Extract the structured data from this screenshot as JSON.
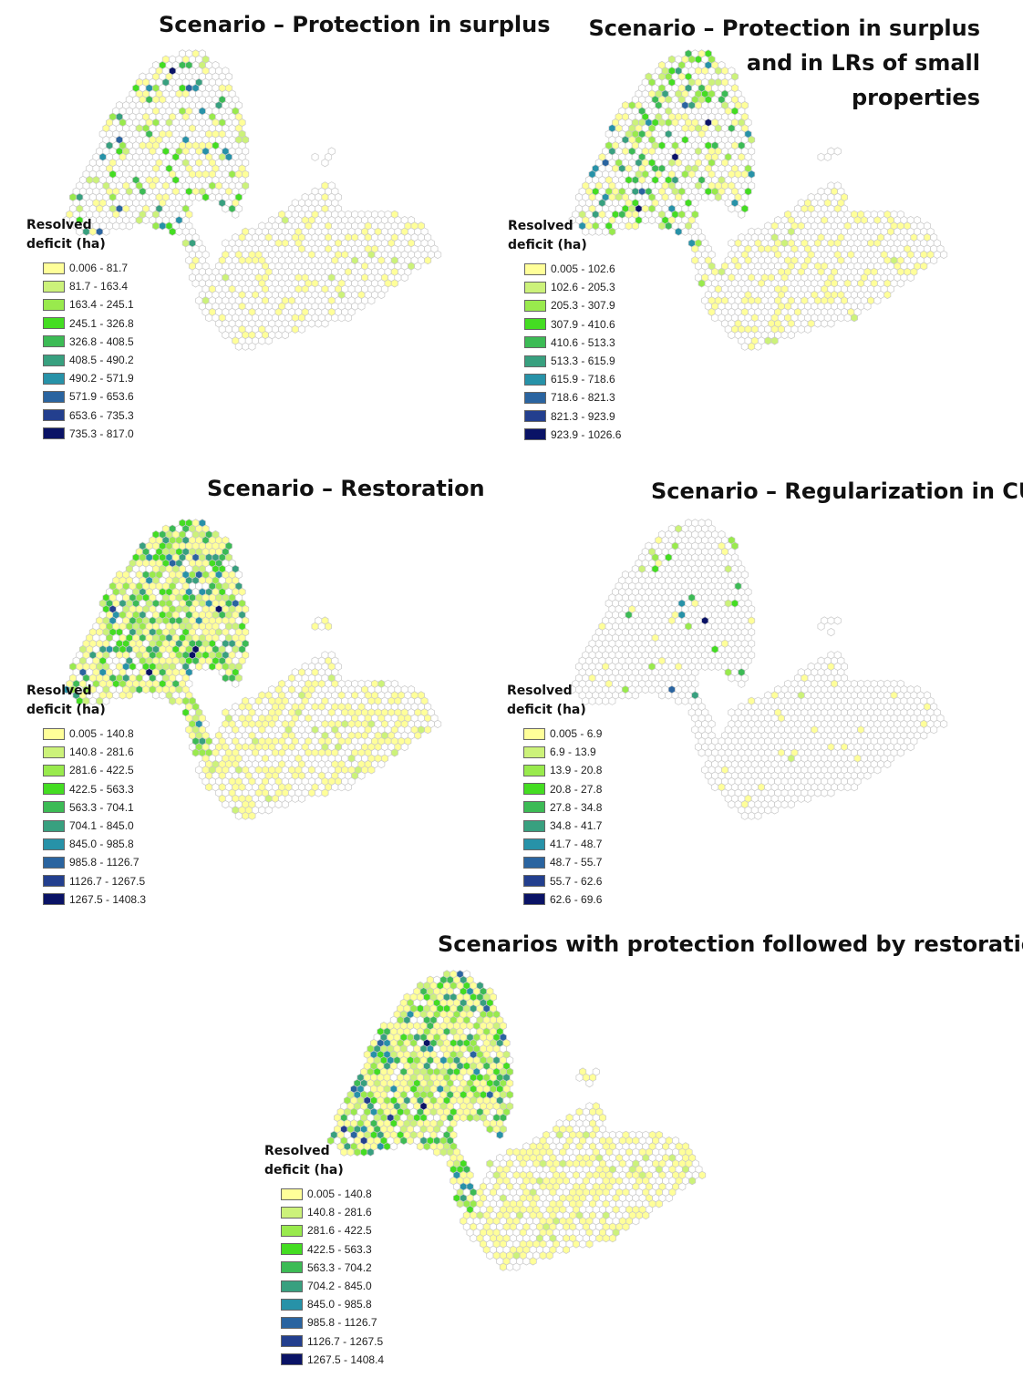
{
  "colors": {
    "ramp": [
      "#ffff99",
      "#ccf27a",
      "#99ea4d",
      "#44dd22",
      "#3cbb55",
      "#38a07f",
      "#2792a8",
      "#2a64a0",
      "#233f8e",
      "#0a1366"
    ],
    "neutral_fill": "#ffffff",
    "neutral_stroke": "#c8c8c8"
  },
  "panels": [
    {
      "id": "protection-surplus",
      "title_lines": [
        "Scenario – Protection in surplus"
      ],
      "legend_title_lines": [
        "Resolved",
        "deficit (ha)"
      ],
      "legend": [
        "0.006 - 81.7",
        "81.7 - 163.4",
        "163.4 - 245.1",
        "245.1 - 326.8",
        "326.8 - 408.5",
        "408.5 - 490.2",
        "490.2 - 571.9",
        "571.9 - 653.6",
        "653.6 - 735.3",
        "735.3 - 817.0"
      ],
      "intensity": 0.28
    },
    {
      "id": "protection-surplus-lrs",
      "title_lines": [
        "Scenario – Protection in surplus",
        "and in LRs of small",
        "properties"
      ],
      "legend_title_lines": [
        "Resolved",
        "deficit (ha)"
      ],
      "legend": [
        "0.005 - 102.6",
        "102.6 - 205.3",
        "205.3 - 307.9",
        "307.9 - 410.6",
        "410.6 - 513.3",
        "513.3 - 615.9",
        "615.9 - 718.6",
        "718.6 - 821.3",
        "821.3 - 923.9",
        "923.9 - 1026.6"
      ],
      "intensity": 0.45
    },
    {
      "id": "restoration",
      "title_lines": [
        "Scenario – Restoration"
      ],
      "legend_title_lines": [
        "Resolved",
        "deficit (ha)"
      ],
      "legend": [
        "0.005 - 140.8",
        "140.8 - 281.6",
        "281.6 - 422.5",
        "422.5 - 563.3",
        "563.3 - 704.1",
        "704.1 - 845.0",
        "845.0 - 985.8",
        "985.8 - 1126.7",
        "1126.7 - 1267.5",
        "1267.5 - 1408.3"
      ],
      "intensity": 0.85
    },
    {
      "id": "regularization-cu",
      "title_lines": [
        "Scenario – Regularization in CU"
      ],
      "legend_title_lines": [
        "Resolved",
        "deficit (ha)"
      ],
      "legend": [
        "0.005 - 6.9",
        "6.9 - 13.9",
        "13.9 - 20.8",
        "20.8 - 27.8",
        "27.8 - 34.8",
        "34.8 - 41.7",
        "41.7 - 48.7",
        "48.7 - 55.7",
        "55.7 - 62.6",
        "62.6 - 69.6"
      ],
      "intensity": 0.05
    },
    {
      "id": "protection-then-restoration",
      "title_lines": [
        "Scenarios with protection followed by restoration"
      ],
      "legend_title_lines": [
        "Resolved",
        "deficit (ha)"
      ],
      "legend": [
        "0.005 - 140.8",
        "140.8 - 281.6",
        "281.6 - 422.5",
        "422.5 - 563.3",
        "563.3 - 704.2",
        "704.2 - 845.0",
        "845.0 - 985.8",
        "985.8 - 1126.7",
        "1126.7 - 1267.5",
        "1267.5 - 1408.4"
      ],
      "intensity": 0.9
    }
  ]
}
